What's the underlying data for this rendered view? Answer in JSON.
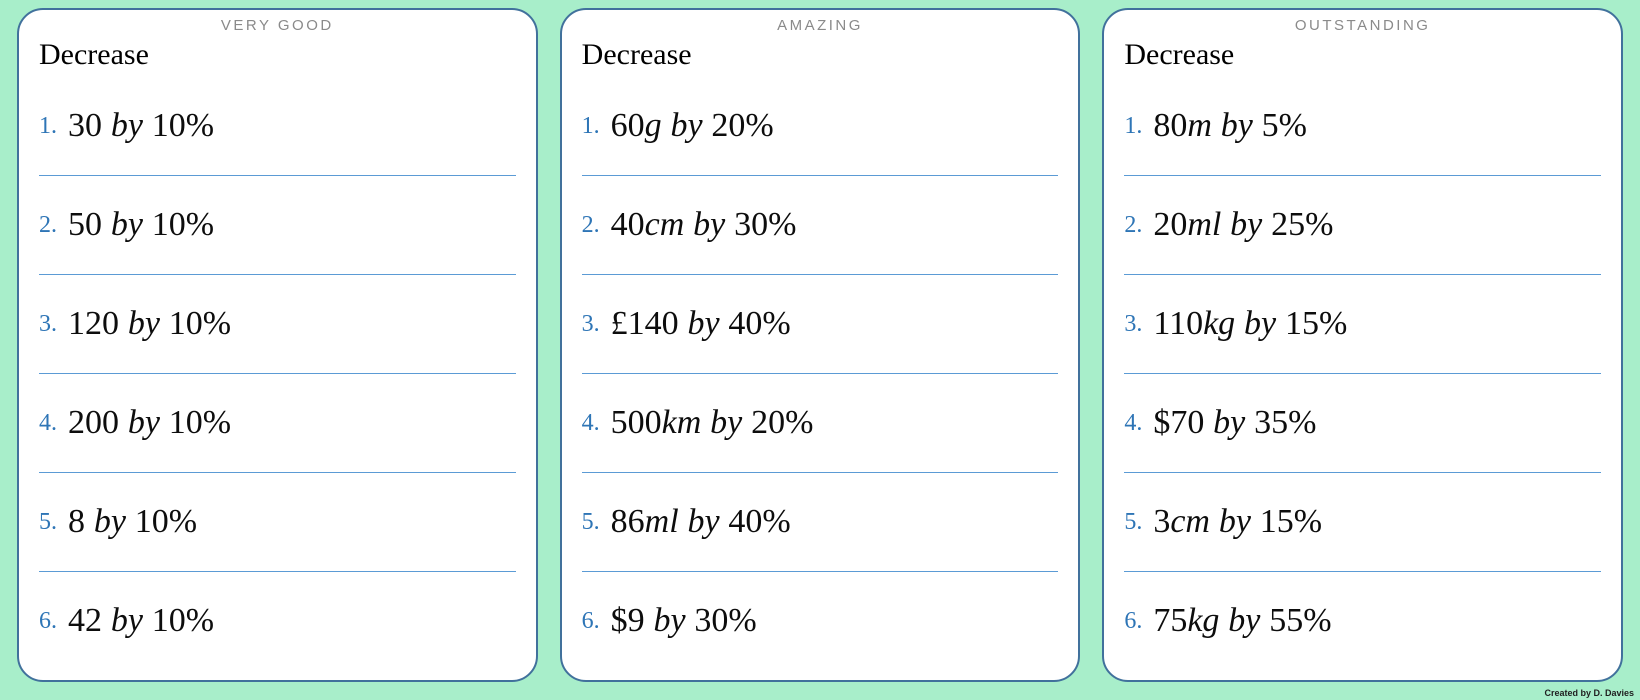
{
  "labels": {
    "by": "by"
  },
  "credit": "Created by D. Davies",
  "colors": {
    "background": "#a8eeca",
    "card_border": "#41719c",
    "divider": "#5b9bd5",
    "item_number": "#2e75b6",
    "badge_gray": "#8a8a8a"
  },
  "cards": [
    {
      "badge": "VERY GOOD",
      "title": "Decrease",
      "items": [
        {
          "n": "1.",
          "amount": "30",
          "unit": "",
          "percent": "10%"
        },
        {
          "n": "2.",
          "amount": "50",
          "unit": "",
          "percent": "10%"
        },
        {
          "n": "3.",
          "amount": "120",
          "unit": "",
          "percent": "10%"
        },
        {
          "n": "4.",
          "amount": "200",
          "unit": "",
          "percent": "10%"
        },
        {
          "n": "5.",
          "amount": "8",
          "unit": "",
          "percent": "10%"
        },
        {
          "n": "6.",
          "amount": "42",
          "unit": "",
          "percent": "10%"
        }
      ]
    },
    {
      "badge": "AMAZING",
      "title": "Decrease",
      "items": [
        {
          "n": "1.",
          "amount": "60",
          "unit": "g",
          "percent": "20%"
        },
        {
          "n": "2.",
          "amount": "40",
          "unit": "cm",
          "percent": "30%"
        },
        {
          "n": "3.",
          "amount": "£140",
          "unit": "",
          "percent": "40%"
        },
        {
          "n": "4.",
          "amount": "500",
          "unit": "km",
          "percent": "20%"
        },
        {
          "n": "5.",
          "amount": "86",
          "unit": "ml",
          "percent": "40%"
        },
        {
          "n": "6.",
          "amount": "$9",
          "unit": "",
          "percent": "30%"
        }
      ]
    },
    {
      "badge": "OUTSTANDING",
      "title": "Decrease",
      "items": [
        {
          "n": "1.",
          "amount": "80",
          "unit": "m",
          "percent": "5%"
        },
        {
          "n": "2.",
          "amount": "20",
          "unit": "ml",
          "percent": "25%"
        },
        {
          "n": "3.",
          "amount": "110",
          "unit": "kg",
          "percent": "15%"
        },
        {
          "n": "4.",
          "amount": "$70",
          "unit": "",
          "percent": "35%"
        },
        {
          "n": "5.",
          "amount": "3",
          "unit": "cm",
          "percent": "15%"
        },
        {
          "n": "6.",
          "amount": "75",
          "unit": "kg",
          "percent": "55%"
        }
      ]
    }
  ]
}
